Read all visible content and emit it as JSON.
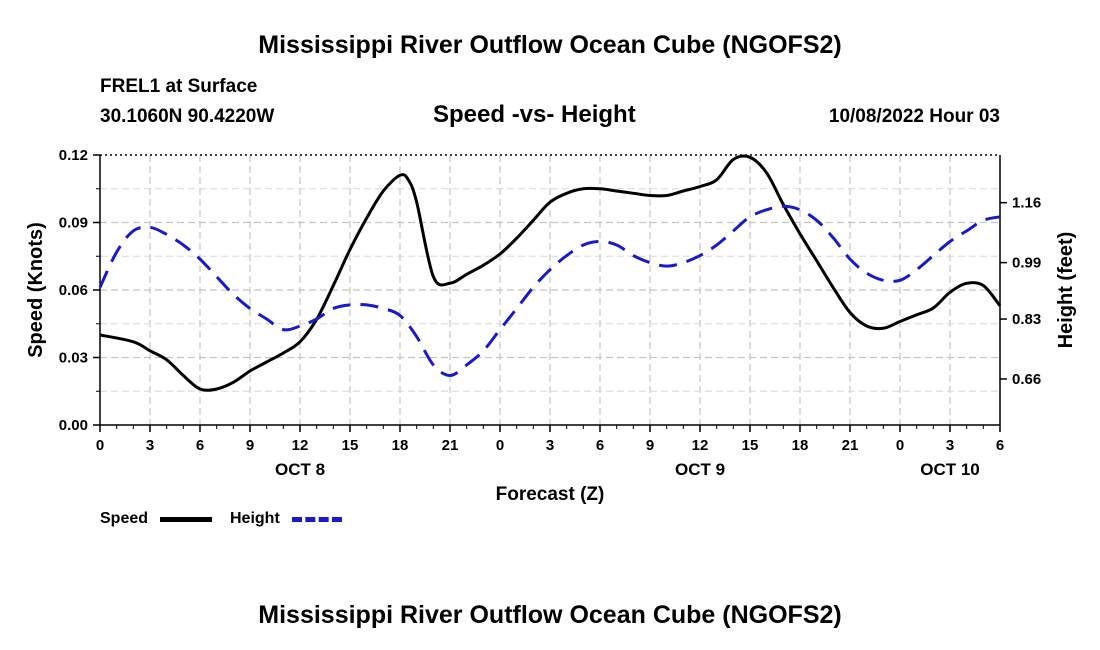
{
  "page": {
    "title": "Mississippi River Outflow Ocean Cube (NGOFS2)",
    "footer_title": "Mississippi River Outflow Ocean Cube (NGOFS2)",
    "station": "FREL1 at Surface",
    "coords": "30.1060N  90.4220W",
    "subtitle": "Speed -vs- Height",
    "datetime": "10/08/2022 Hour 03"
  },
  "legend": [
    {
      "label": "Speed",
      "color": "#000000",
      "style": "solid"
    },
    {
      "label": "Height",
      "color": "#1a1acc",
      "style": "dashed"
    }
  ],
  "chart_data": {
    "type": "line",
    "title": "Speed -vs- Height",
    "xlabel": "Forecast (Z)",
    "ylabel": "Speed (Knots)",
    "y2label": "Height (feet)",
    "xlim": [
      0,
      54
    ],
    "ylim": [
      0,
      0.12
    ],
    "y2lim": [
      0.5295,
      1.2952
    ],
    "x_ticks": [
      0,
      3,
      6,
      9,
      12,
      15,
      18,
      21,
      24,
      27,
      30,
      33,
      36,
      39,
      42,
      45,
      48,
      51,
      54
    ],
    "x_tick_labels": [
      "0",
      "3",
      "6",
      "9",
      "12",
      "15",
      "18",
      "21",
      "0",
      "3",
      "6",
      "9",
      "12",
      "15",
      "18",
      "21",
      "0",
      "3",
      "6"
    ],
    "day_labels": [
      {
        "x": 12,
        "label": "OCT 8"
      },
      {
        "x": 36,
        "label": "OCT 9"
      },
      {
        "x": 51,
        "label": "OCT 10"
      }
    ],
    "y_ticks": [
      0.0,
      0.03,
      0.06,
      0.09,
      0.12
    ],
    "y_tick_labels": [
      "0.00",
      "0.03",
      "0.06",
      "0.09",
      "0.12"
    ],
    "y2_ticks": [
      0.66,
      0.83,
      0.99,
      1.16
    ],
    "y2_tick_labels": [
      "0.66",
      "0.83",
      "0.99",
      "1.16"
    ],
    "grid": true,
    "series": [
      {
        "name": "Speed",
        "axis": "left",
        "color": "#000000",
        "style": "solid",
        "x": [
          0,
          2,
          3,
          4,
          5,
          6,
          7,
          8,
          9,
          10,
          11,
          12,
          13,
          14,
          15,
          16,
          17,
          18,
          18.5,
          19,
          20,
          21,
          22,
          23,
          24,
          25,
          26,
          27,
          28,
          29,
          30,
          31,
          32,
          33,
          34,
          35,
          36,
          37,
          38,
          39,
          40,
          41,
          42,
          43,
          44,
          45,
          46,
          47,
          48,
          49,
          50,
          51,
          52,
          53,
          54
        ],
        "values": [
          0.04,
          0.037,
          0.033,
          0.029,
          0.022,
          0.016,
          0.016,
          0.019,
          0.024,
          0.028,
          0.032,
          0.037,
          0.047,
          0.062,
          0.078,
          0.092,
          0.104,
          0.111,
          0.109,
          0.099,
          0.066,
          0.063,
          0.067,
          0.071,
          0.076,
          0.083,
          0.091,
          0.099,
          0.103,
          0.105,
          0.105,
          0.104,
          0.103,
          0.102,
          0.102,
          0.104,
          0.106,
          0.109,
          0.118,
          0.119,
          0.112,
          0.098,
          0.085,
          0.073,
          0.061,
          0.05,
          0.044,
          0.043,
          0.046,
          0.049,
          0.052,
          0.059,
          0.063,
          0.062,
          0.053
        ]
      },
      {
        "name": "Height",
        "axis": "right",
        "color": "#1a1acc",
        "style": "dashed",
        "x": [
          0,
          1,
          2,
          3,
          4,
          5,
          6,
          7,
          8,
          9,
          10,
          11,
          12,
          13,
          14,
          15,
          16,
          17,
          18,
          19,
          20,
          21,
          22,
          23,
          24,
          25,
          26,
          27,
          28,
          29,
          30,
          31,
          32,
          33,
          34,
          35,
          36,
          37,
          38,
          39,
          40,
          41,
          42,
          43,
          44,
          45,
          46,
          47,
          48,
          49,
          50,
          51,
          52,
          53,
          54
        ],
        "values": [
          0.92,
          1.02,
          1.08,
          1.09,
          1.07,
          1.04,
          1.0,
          0.95,
          0.9,
          0.86,
          0.83,
          0.8,
          0.81,
          0.83,
          0.86,
          0.87,
          0.87,
          0.86,
          0.84,
          0.78,
          0.7,
          0.67,
          0.7,
          0.74,
          0.8,
          0.86,
          0.92,
          0.97,
          1.01,
          1.04,
          1.05,
          1.04,
          1.01,
          0.99,
          0.98,
          0.99,
          1.01,
          1.04,
          1.08,
          1.12,
          1.14,
          1.15,
          1.14,
          1.11,
          1.06,
          1.0,
          0.96,
          0.94,
          0.94,
          0.97,
          1.01,
          1.05,
          1.08,
          1.11,
          1.12
        ]
      }
    ]
  }
}
